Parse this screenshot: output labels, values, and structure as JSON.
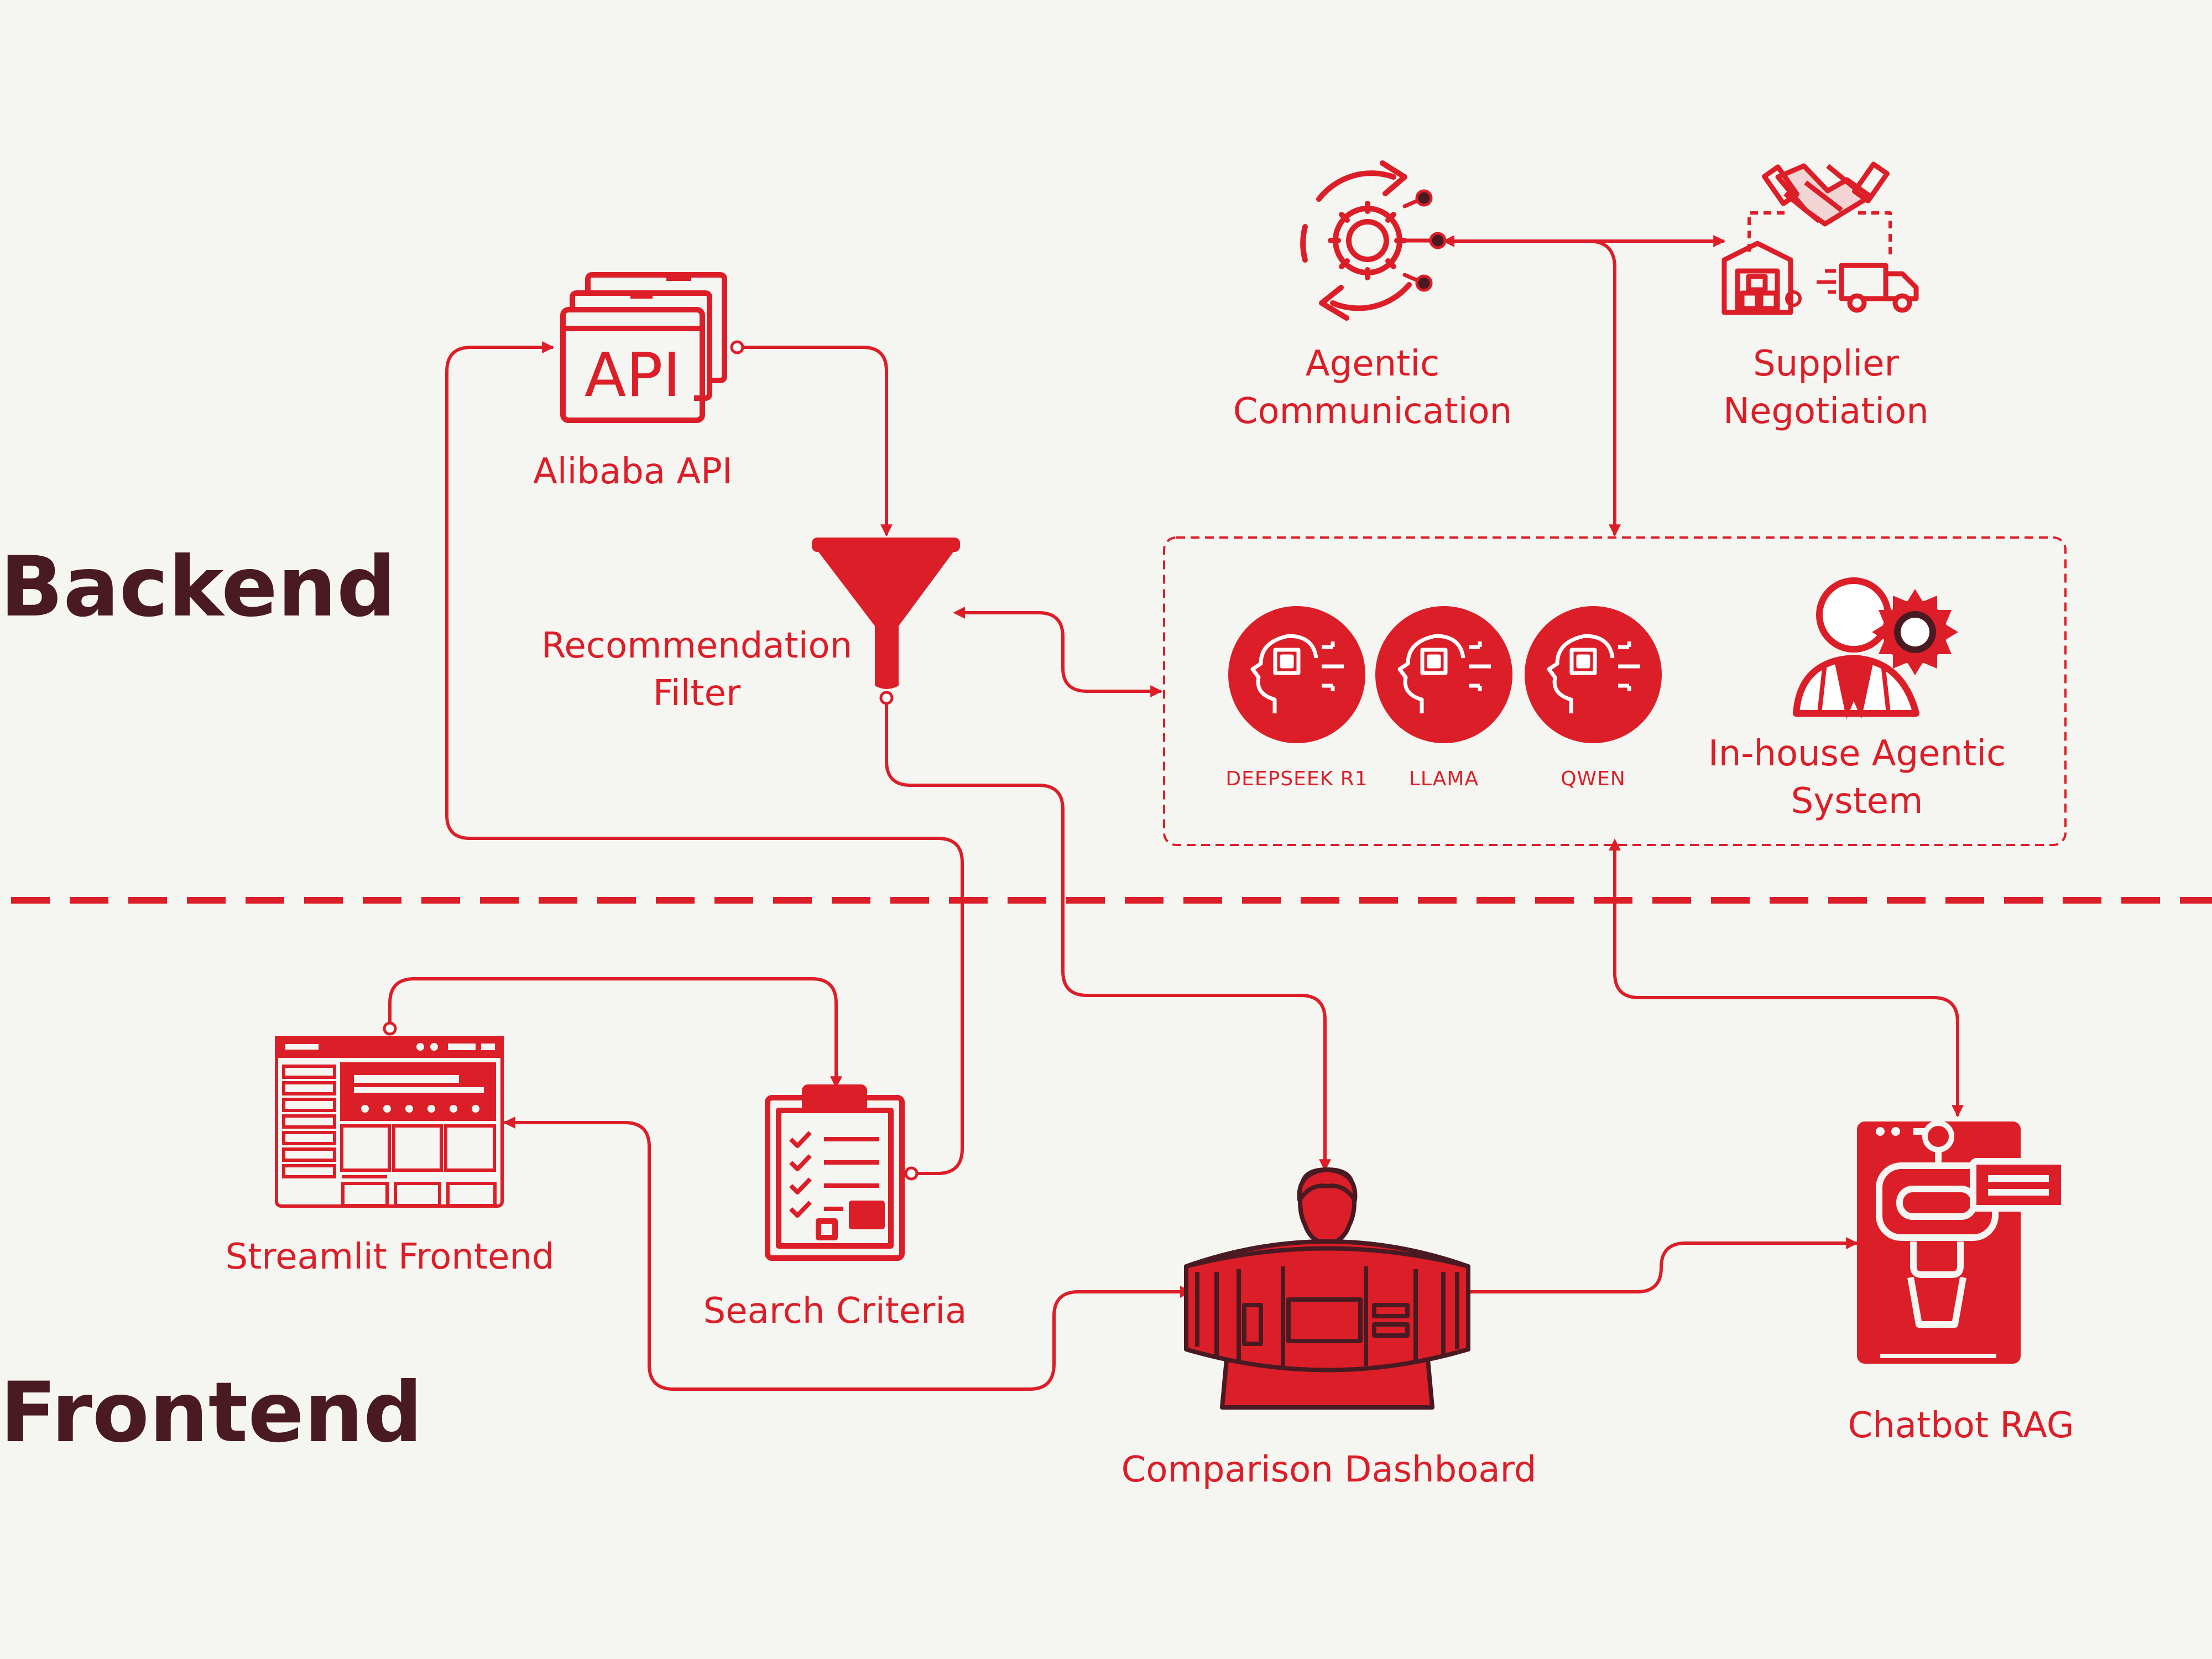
{
  "sections": {
    "backend": "Backend",
    "frontend": "Frontend"
  },
  "nodes": {
    "alibaba_api": {
      "label": "Alibaba API",
      "icon_text": "API"
    },
    "recommendation_filter": {
      "line1": "Recommendation",
      "line2": "Filter"
    },
    "agentic_communication": {
      "line1": "Agentic",
      "line2": "Communication"
    },
    "supplier_negotiation": {
      "line1": "Supplier",
      "line2": "Negotiation"
    },
    "agentic_system": {
      "line1": "In-house Agentic",
      "line2": "System",
      "models": [
        "DEEPSEEK R1",
        "LLAMA",
        "QWEN"
      ]
    },
    "streamlit_frontend": {
      "label": "Streamlit Frontend"
    },
    "search_criteria": {
      "label": "Search Criteria"
    },
    "comparison_dashboard": {
      "label": "Comparison Dashboard"
    },
    "chatbot_rag": {
      "label": "Chatbot RAG"
    }
  },
  "colors": {
    "accent": "#dc1e28",
    "title": "#4a1a22",
    "background": "#f5f5f1"
  }
}
